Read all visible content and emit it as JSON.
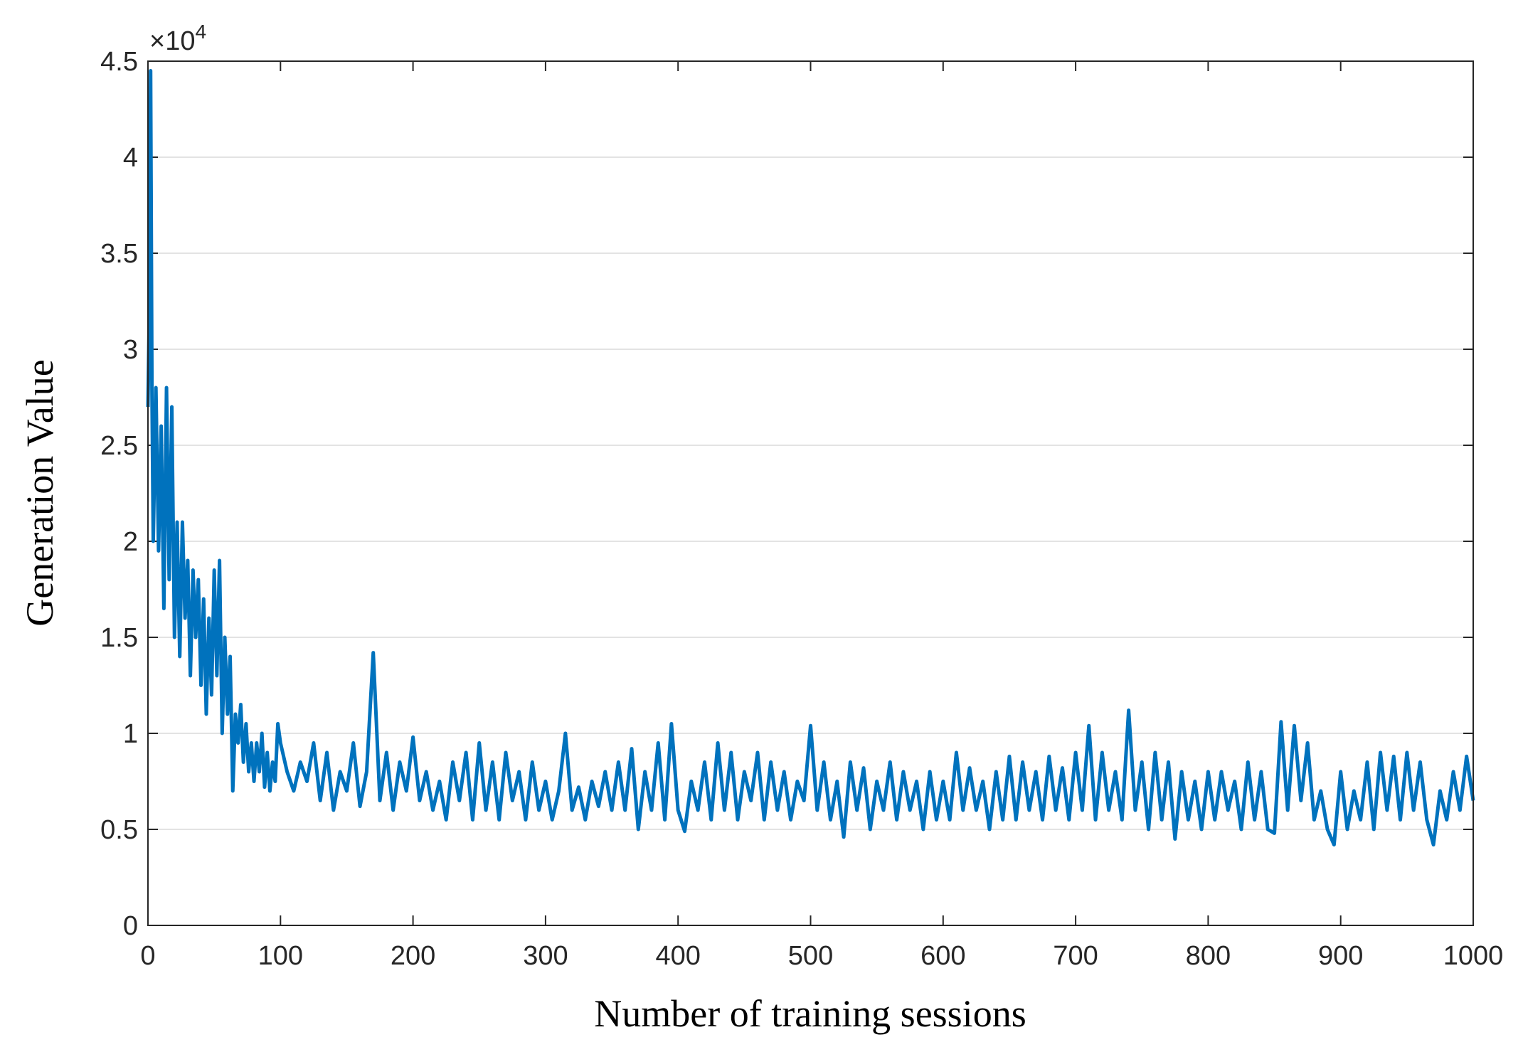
{
  "chart_data": {
    "type": "line",
    "xlabel": "Number of training sessions",
    "ylabel": "Generation Value",
    "y_multiplier_base": "×10",
    "y_multiplier_exponent": "4",
    "color": "#0072bd",
    "grid": true,
    "xlim": [
      0,
      1000
    ],
    "ylim": [
      0,
      4.5
    ],
    "xticks": [
      0,
      100,
      200,
      300,
      400,
      500,
      600,
      700,
      800,
      900,
      1000
    ],
    "yticks": [
      0,
      0.5,
      1,
      1.5,
      2,
      2.5,
      3,
      3.5,
      4,
      4.5
    ],
    "x": [
      0,
      1,
      2,
      3,
      4,
      6,
      8,
      10,
      12,
      14,
      16,
      18,
      20,
      22,
      24,
      26,
      28,
      30,
      32,
      34,
      36,
      38,
      40,
      42,
      44,
      46,
      48,
      50,
      52,
      54,
      56,
      58,
      60,
      62,
      64,
      66,
      68,
      70,
      72,
      74,
      76,
      78,
      80,
      82,
      84,
      86,
      88,
      90,
      92,
      94,
      96,
      98,
      100,
      105,
      110,
      115,
      120,
      125,
      130,
      135,
      140,
      145,
      150,
      155,
      160,
      165,
      170,
      175,
      180,
      185,
      190,
      195,
      200,
      205,
      210,
      215,
      220,
      225,
      230,
      235,
      240,
      245,
      250,
      255,
      260,
      265,
      270,
      275,
      280,
      285,
      290,
      295,
      300,
      305,
      310,
      315,
      320,
      325,
      330,
      335,
      340,
      345,
      350,
      355,
      360,
      365,
      370,
      375,
      380,
      385,
      390,
      395,
      400,
      405,
      410,
      415,
      420,
      425,
      430,
      435,
      440,
      445,
      450,
      455,
      460,
      465,
      470,
      475,
      480,
      485,
      490,
      495,
      500,
      505,
      510,
      515,
      520,
      525,
      530,
      535,
      540,
      545,
      550,
      555,
      560,
      565,
      570,
      575,
      580,
      585,
      590,
      595,
      600,
      605,
      610,
      615,
      620,
      625,
      630,
      635,
      640,
      645,
      650,
      655,
      660,
      665,
      670,
      675,
      680,
      685,
      690,
      695,
      700,
      705,
      710,
      715,
      720,
      725,
      730,
      735,
      740,
      745,
      750,
      755,
      760,
      765,
      770,
      775,
      780,
      785,
      790,
      795,
      800,
      805,
      810,
      815,
      820,
      825,
      830,
      835,
      840,
      845,
      850,
      855,
      860,
      865,
      870,
      875,
      880,
      885,
      890,
      895,
      900,
      905,
      910,
      915,
      920,
      925,
      930,
      935,
      940,
      945,
      950,
      955,
      960,
      965,
      970,
      975,
      980,
      985,
      990,
      995,
      1000
    ],
    "values": [
      2.7,
      3.2,
      4.45,
      2.8,
      2.0,
      2.8,
      1.95,
      2.6,
      1.65,
      2.8,
      1.8,
      2.7,
      1.5,
      2.1,
      1.4,
      2.1,
      1.6,
      1.9,
      1.3,
      1.85,
      1.5,
      1.8,
      1.25,
      1.7,
      1.1,
      1.6,
      1.2,
      1.85,
      1.3,
      1.9,
      1.0,
      1.5,
      1.1,
      1.4,
      0.7,
      1.1,
      0.95,
      1.15,
      0.85,
      1.05,
      0.8,
      0.95,
      0.75,
      0.95,
      0.8,
      1.0,
      0.72,
      0.9,
      0.7,
      0.85,
      0.75,
      1.05,
      0.95,
      0.8,
      0.7,
      0.85,
      0.75,
      0.95,
      0.65,
      0.9,
      0.6,
      0.8,
      0.7,
      0.95,
      0.62,
      0.8,
      1.42,
      0.65,
      0.9,
      0.6,
      0.85,
      0.7,
      0.98,
      0.65,
      0.8,
      0.6,
      0.75,
      0.55,
      0.85,
      0.65,
      0.9,
      0.55,
      0.95,
      0.6,
      0.85,
      0.55,
      0.9,
      0.65,
      0.8,
      0.55,
      0.85,
      0.6,
      0.75,
      0.55,
      0.7,
      1.0,
      0.6,
      0.72,
      0.55,
      0.75,
      0.62,
      0.8,
      0.6,
      0.85,
      0.6,
      0.92,
      0.5,
      0.8,
      0.6,
      0.95,
      0.55,
      1.05,
      0.6,
      0.49,
      0.75,
      0.6,
      0.85,
      0.55,
      0.95,
      0.6,
      0.9,
      0.55,
      0.8,
      0.65,
      0.9,
      0.55,
      0.85,
      0.6,
      0.8,
      0.55,
      0.75,
      0.65,
      1.04,
      0.6,
      0.85,
      0.55,
      0.75,
      0.46,
      0.85,
      0.6,
      0.82,
      0.5,
      0.75,
      0.6,
      0.85,
      0.55,
      0.8,
      0.6,
      0.75,
      0.5,
      0.8,
      0.55,
      0.75,
      0.55,
      0.9,
      0.6,
      0.82,
      0.6,
      0.75,
      0.5,
      0.8,
      0.55,
      0.88,
      0.55,
      0.85,
      0.6,
      0.8,
      0.55,
      0.88,
      0.6,
      0.82,
      0.55,
      0.9,
      0.6,
      1.04,
      0.55,
      0.9,
      0.6,
      0.8,
      0.55,
      1.12,
      0.6,
      0.85,
      0.5,
      0.9,
      0.55,
      0.85,
      0.45,
      0.8,
      0.55,
      0.75,
      0.5,
      0.8,
      0.55,
      0.8,
      0.6,
      0.75,
      0.5,
      0.85,
      0.55,
      0.8,
      0.5,
      0.48,
      1.06,
      0.6,
      1.04,
      0.65,
      0.95,
      0.55,
      0.7,
      0.5,
      0.42,
      0.8,
      0.5,
      0.7,
      0.55,
      0.85,
      0.5,
      0.9,
      0.6,
      0.88,
      0.55,
      0.9,
      0.6,
      0.85,
      0.55,
      0.42,
      0.7,
      0.55,
      0.8,
      0.6,
      0.88,
      0.65
    ]
  }
}
